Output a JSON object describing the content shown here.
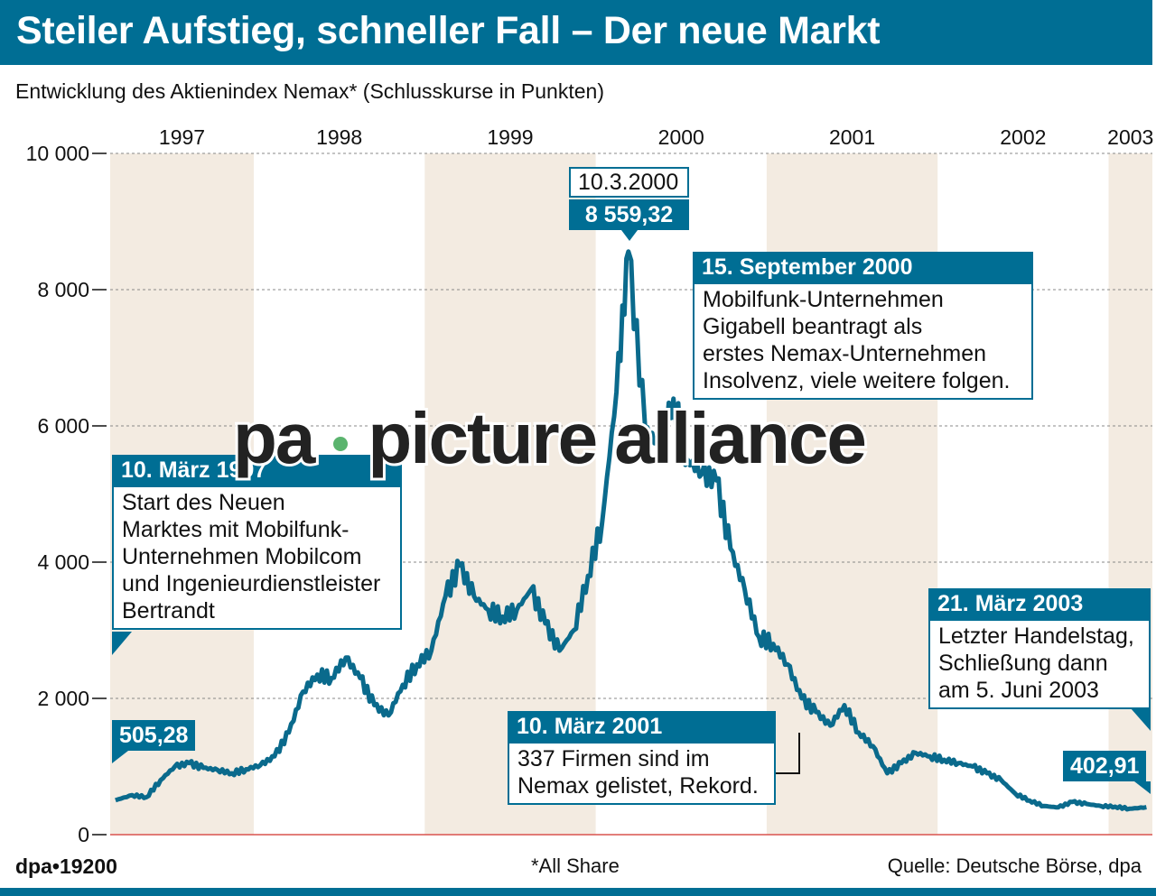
{
  "title": "Steiler Aufstieg, schneller Fall – Der neue Markt",
  "subtitle": "Entwicklung des Aktienindex Nemax* (Schlusskurse in Punkten)",
  "footer": {
    "code": "dpa•19200",
    "note": "*All Share",
    "source": "Quelle: Deutsche Börse, dpa"
  },
  "watermark": {
    "left": "pa",
    "right": "picture alliance",
    "dot_color": "#5bb46e"
  },
  "colors": {
    "brand": "#006e94",
    "band": "#f3ebe1",
    "line": "#0a6a8c",
    "baseline": "#d9534f"
  },
  "chart_data": {
    "type": "line",
    "title": "Steiler Aufstieg, schneller Fall – Der neue Markt",
    "ylabel": "Schlusskurse in Punkten",
    "ylim": [
      0,
      10000
    ],
    "yticks": [
      0,
      2000,
      4000,
      6000,
      8000,
      10000
    ],
    "ytick_labels": [
      "0",
      "2 000",
      "4 000",
      "6 000",
      "8 000",
      "10 000"
    ],
    "years": [
      "1997",
      "1998",
      "1999",
      "2000",
      "2001",
      "2002",
      "2003"
    ],
    "xlim": [
      "1997-03-10",
      "2003-03-21"
    ],
    "grid": "horizontal dashed",
    "alternating_year_bands": true,
    "series": [
      {
        "x": [
          "1997-03-10",
          "1997-04-15",
          "1997-05-15",
          "1997-06-15",
          "1997-07-15",
          "1997-08-15",
          "1997-09-15",
          "1997-10-15",
          "1997-11-15",
          "1997-12-15",
          "1998-01-15",
          "1998-02-15",
          "1998-03-15",
          "1998-04-15",
          "1998-05-15",
          "1998-06-15",
          "1998-07-15",
          "1998-08-15",
          "1998-09-15",
          "1998-10-15",
          "1998-11-15",
          "1998-12-15",
          "1999-01-15",
          "1999-02-15",
          "1999-03-15",
          "1999-04-15",
          "1999-05-15",
          "1999-06-15",
          "1999-07-15",
          "1999-08-15",
          "1999-09-15",
          "1999-10-15",
          "1999-11-15",
          "1999-12-15",
          "2000-01-15",
          "2000-02-15",
          "2000-03-10",
          "2000-04-15",
          "2000-05-15",
          "2000-06-15",
          "2000-07-15",
          "2000-08-15",
          "2000-09-15",
          "2000-10-15",
          "2000-11-15",
          "2000-12-15",
          "2001-01-15",
          "2001-02-15",
          "2001-03-15",
          "2001-04-15",
          "2001-05-15",
          "2001-06-15",
          "2001-07-15",
          "2001-08-15",
          "2001-09-15",
          "2001-10-15",
          "2001-11-15",
          "2001-12-15",
          "2002-01-15",
          "2002-02-15",
          "2002-03-15",
          "2002-04-15",
          "2002-05-15",
          "2002-06-15",
          "2002-07-15",
          "2002-08-15",
          "2002-09-15",
          "2002-10-15",
          "2002-11-15",
          "2002-12-15",
          "2003-01-15",
          "2003-02-15",
          "2003-03-21"
        ],
        "values": [
          505.28,
          580,
          550,
          800,
          1000,
          1050,
          980,
          950,
          900,
          960,
          1020,
          1150,
          1500,
          2100,
          2350,
          2300,
          2600,
          2300,
          1900,
          1750,
          2200,
          2500,
          2700,
          3500,
          3950,
          3500,
          3300,
          3200,
          3300,
          3600,
          3100,
          2700,
          3000,
          3800,
          4600,
          6500,
          8559.32,
          6000,
          5700,
          6400,
          5500,
          5300,
          5200,
          4200,
          3600,
          2900,
          2800,
          2500,
          2000,
          1800,
          1600,
          1900,
          1500,
          1300,
          900,
          1050,
          1200,
          1150,
          1100,
          1050,
          1000,
          900,
          800,
          600,
          500,
          420,
          400,
          480,
          450,
          420,
          410,
          380,
          402.91
        ]
      }
    ],
    "annotations": {
      "peak": {
        "date": "10.3.2000",
        "value": "8 559,32"
      },
      "start": {
        "title": "10. März 1997",
        "text": [
          "Start des Neuen",
          "Marktes mit Mobilfunk-",
          "Unternehmen Mobilcom",
          "und Ingenieurdienstleister",
          "Bertrandt"
        ],
        "value": "505,28"
      },
      "gigabell": {
        "title": "15. September 2000",
        "text": [
          "Mobilfunk-Unternehmen",
          "Gigabell beantragt als",
          "erstes Nemax-Unternehmen",
          "Insolvenz, viele weitere folgen."
        ]
      },
      "record": {
        "title": "10. März 2001",
        "text": [
          "337 Firmen sind im",
          "Nemax gelistet, Rekord."
        ]
      },
      "end": {
        "title": "21. März 2003",
        "text": [
          "Letzter Handelstag,",
          "Schließung dann",
          "am 5. Juni 2003"
        ],
        "value": "402,91"
      }
    }
  }
}
